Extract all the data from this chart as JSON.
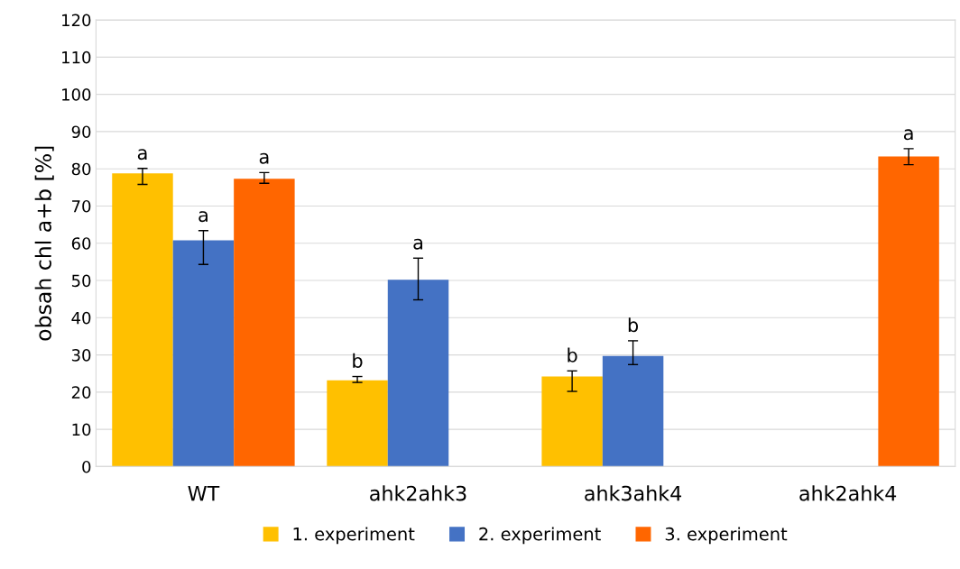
{
  "chart_data": {
    "type": "bar",
    "ylabel": "obsah chl a+b [%]",
    "categories": [
      "WT",
      "ahk2ahk3",
      "ahk3ahk4",
      "ahk2ahk4"
    ],
    "series": [
      {
        "name": "1. experiment",
        "color": "#ffc000",
        "values": [
          78.8,
          23.2,
          24.2,
          null
        ],
        "errors": [
          [
            75.8,
            80.1
          ],
          [
            22.6,
            24.2
          ],
          [
            20.2,
            25.7
          ],
          null
        ],
        "value_labels": [
          "a",
          "b",
          "b",
          null
        ]
      },
      {
        "name": "2. experiment",
        "color": "#4472c4",
        "values": [
          60.8,
          50.2,
          29.7,
          null
        ],
        "errors": [
          [
            54.3,
            63.4
          ],
          [
            44.8,
            56.0
          ],
          [
            27.4,
            33.8
          ],
          null
        ],
        "value_labels": [
          "a",
          "a",
          "b",
          null
        ]
      },
      {
        "name": "3. experiment",
        "color": "#ff6600",
        "values": [
          77.3,
          null,
          null,
          83.3
        ],
        "errors": [
          [
            76.1,
            79.0
          ],
          null,
          null,
          [
            81.1,
            85.4
          ]
        ],
        "value_labels": [
          "a",
          null,
          null,
          "a"
        ]
      }
    ],
    "ylim": [
      0,
      120
    ],
    "yticks": [
      0,
      10,
      20,
      30,
      40,
      50,
      60,
      70,
      80,
      90,
      100,
      110,
      120
    ],
    "grid": "y",
    "legend": "bottom"
  }
}
